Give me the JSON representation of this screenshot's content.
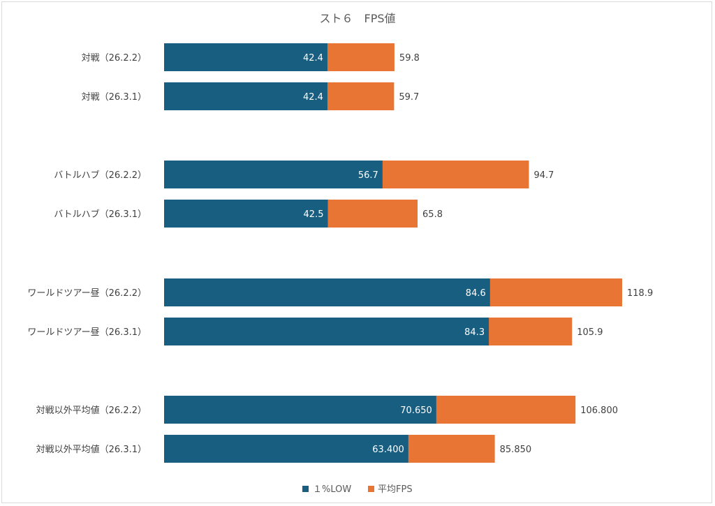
{
  "chart_data": {
    "type": "bar",
    "orientation": "horizontal",
    "title": "スト６　FPS値",
    "categories": [
      "対戦（26.2.2）",
      "対戦（26.3.1）",
      "バトルハブ（26.2.2）",
      "バトルハブ（26.3.1）",
      "ワールドツアー昼（26.2.2）",
      "ワールドツアー昼（26.3.1）",
      "対戦以外平均値（26.2.2）",
      "対戦以外平均値（26.3.1）"
    ],
    "groups_after_index": [
      1,
      3,
      5
    ],
    "series": [
      {
        "name": "１%LOW",
        "color": "#175e81",
        "values": [
          42.4,
          42.4,
          56.7,
          42.5,
          84.6,
          84.3,
          70.65,
          63.4
        ],
        "labels": [
          "42.4",
          "42.4",
          "56.7",
          "42.5",
          "84.6",
          "84.3",
          "70.650",
          "63.400"
        ]
      },
      {
        "name": "平均FPS",
        "color": "#e87534",
        "values": [
          59.8,
          59.7,
          94.7,
          65.8,
          118.9,
          105.9,
          106.8,
          85.85
        ],
        "labels": [
          "59.8",
          "59.7",
          "94.7",
          "65.8",
          "118.9",
          "105.9",
          "106.800",
          "85.850"
        ]
      }
    ],
    "overlap": true,
    "xlim": [
      0,
      118.9
    ],
    "grid": false,
    "legend": "bottom"
  }
}
